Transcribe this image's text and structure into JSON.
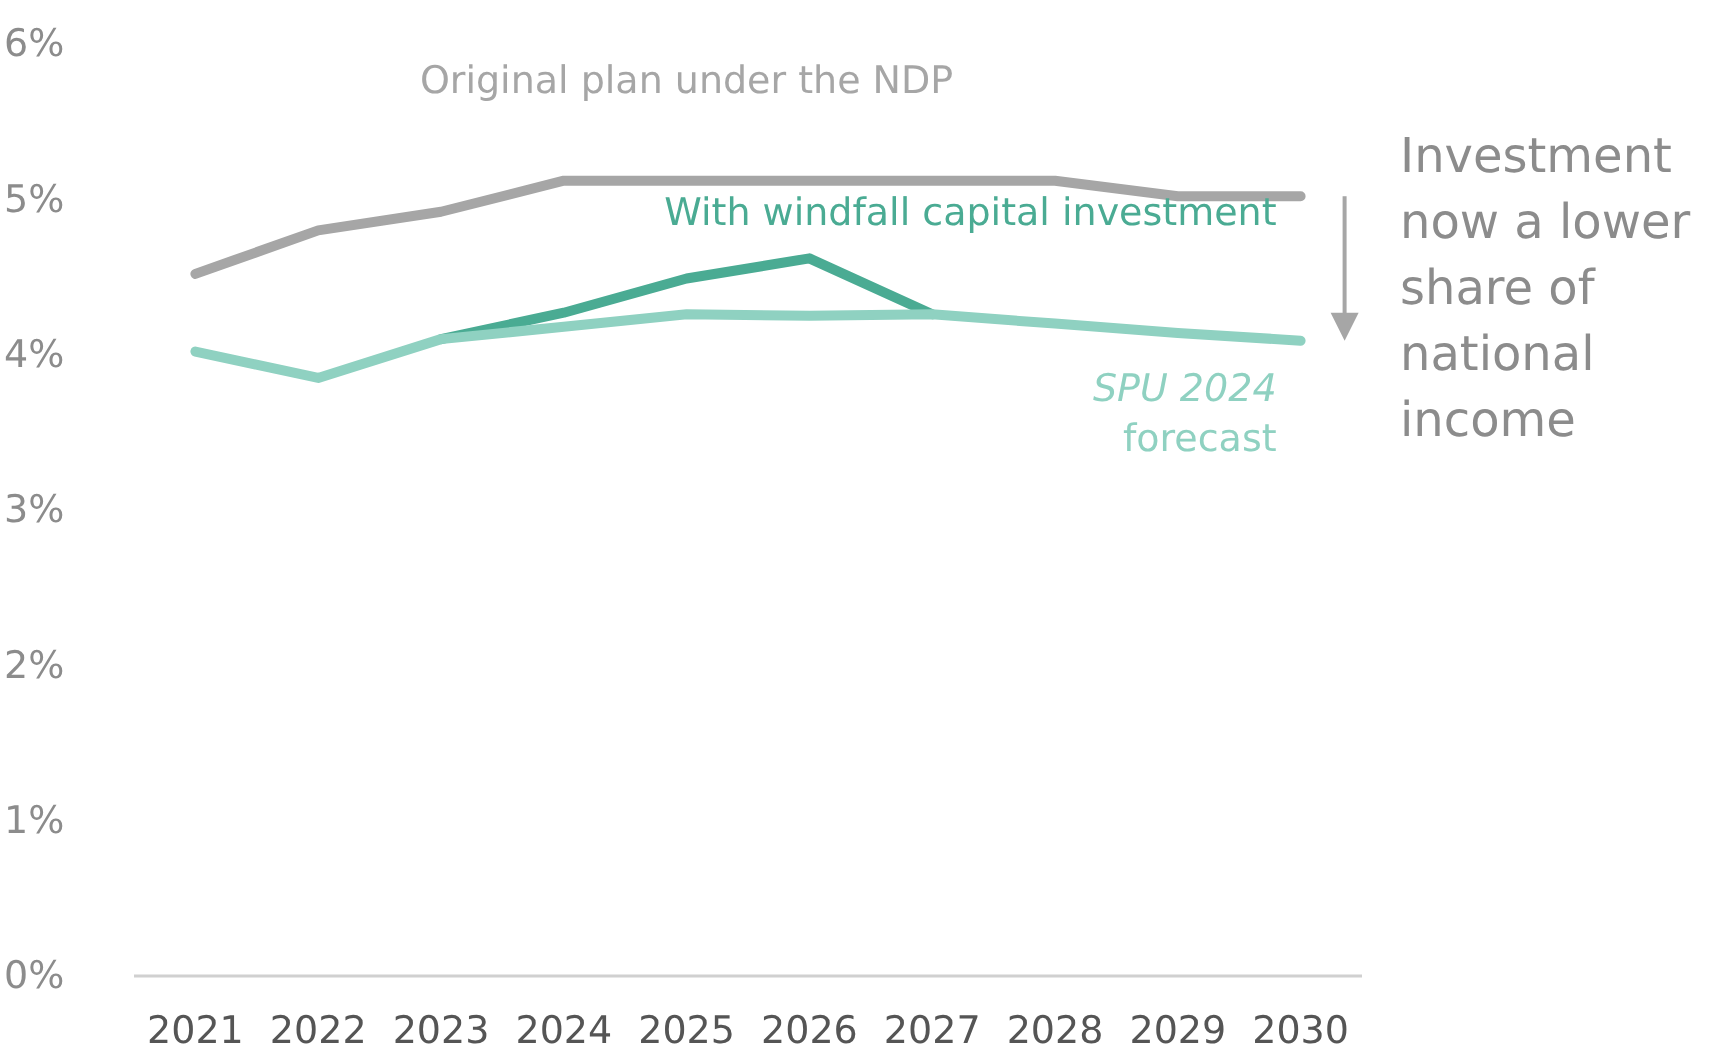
{
  "chart_data": {
    "type": "line",
    "categories": [
      "2021",
      "2022",
      "2023",
      "2024",
      "2025",
      "2026",
      "2027",
      "2028",
      "2029",
      "2030"
    ],
    "series": [
      {
        "name": "Original plan under the NDP",
        "color": "#a6a6a6",
        "values": [
          4.52,
          4.8,
          4.92,
          5.12,
          5.12,
          5.12,
          5.12,
          5.12,
          5.02,
          5.02
        ]
      },
      {
        "name": "With windfall capital investment",
        "color": "#4aab93",
        "values": [
          null,
          null,
          4.1,
          4.27,
          4.49,
          4.62,
          4.26,
          null,
          null,
          null
        ]
      },
      {
        "name": "SPU 2024 forecast",
        "color": "#8fd1c1",
        "values": [
          4.02,
          3.85,
          4.1,
          4.18,
          4.26,
          4.25,
          4.26,
          4.2,
          4.14,
          4.09
        ]
      }
    ],
    "ylim": [
      0,
      6
    ],
    "yticks": [
      {
        "value": 0,
        "label": "0%"
      },
      {
        "value": 1,
        "label": "1%"
      },
      {
        "value": 2,
        "label": "2%"
      },
      {
        "value": 3,
        "label": "3%"
      },
      {
        "value": 4,
        "label": "4%"
      },
      {
        "value": 5,
        "label": "5%"
      },
      {
        "value": 6,
        "label": "6%"
      }
    ],
    "annotations": [
      "Investment now a lower share of national income"
    ],
    "grid": false,
    "legend": false,
    "marker": "none",
    "line_style": "solid"
  }
}
